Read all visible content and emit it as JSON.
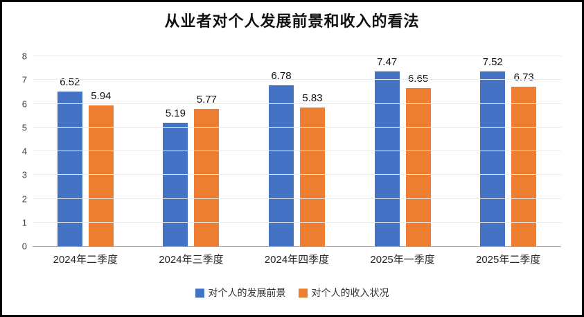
{
  "chart_data": {
    "type": "bar",
    "title": "从业者对个人发展前景和收入的看法",
    "categories": [
      "2024年二季度",
      "2024年三季度",
      "2024年四季度",
      "2025年一季度",
      "2025年二季度"
    ],
    "series": [
      {
        "name": "对个人的发展前景",
        "color": "#4472C4",
        "values": [
          6.52,
          5.19,
          6.78,
          7.47,
          7.52
        ]
      },
      {
        "name": "对个人的收入状况",
        "color": "#ED7D31",
        "values": [
          5.94,
          5.77,
          5.83,
          6.65,
          6.73
        ]
      }
    ],
    "xlabel": "",
    "ylabel": "",
    "ylim": [
      0,
      8
    ],
    "yticks": [
      0,
      1,
      2,
      3,
      4,
      5,
      6,
      7,
      8
    ],
    "grid": true,
    "legend_position": "bottom",
    "value_label_decimals": 2
  },
  "colors": {
    "axis_line": "#a6a6a6",
    "gridline": "#ebebeb",
    "title_text": "#111111",
    "tick_text": "#404040",
    "frame_border": "#000000",
    "background": "#ffffff"
  }
}
